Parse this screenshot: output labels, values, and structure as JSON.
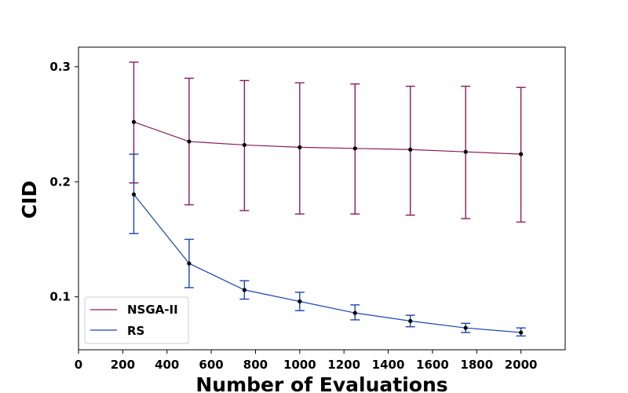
{
  "chart_data": {
    "type": "line",
    "title": "",
    "xlabel": "Number of Evaluations",
    "ylabel": "CID",
    "xlim": [
      0,
      2200
    ],
    "ylim": [
      0.054,
      0.317
    ],
    "xticks": [
      0,
      200,
      400,
      600,
      800,
      1000,
      1200,
      1400,
      1600,
      1800,
      2000
    ],
    "yticks": [
      0.1,
      0.2,
      0.3
    ],
    "ytick_labels": [
      "0.1",
      "0.2",
      "0.3"
    ],
    "grid": false,
    "legend_position": "bottom-left",
    "series": [
      {
        "name": "NSGA-II",
        "color": "#8b1a5c",
        "x": [
          250,
          500,
          750,
          1000,
          1250,
          1500,
          1750,
          2000
        ],
        "y": [
          0.252,
          0.235,
          0.232,
          0.23,
          0.229,
          0.228,
          0.226,
          0.224
        ],
        "yerr_low": [
          0.199,
          0.18,
          0.175,
          0.172,
          0.172,
          0.171,
          0.168,
          0.165
        ],
        "yerr_high": [
          0.304,
          0.29,
          0.288,
          0.286,
          0.285,
          0.283,
          0.283,
          0.282
        ]
      },
      {
        "name": "RS",
        "color": "#1a44b0",
        "x": [
          250,
          500,
          750,
          1000,
          1250,
          1500,
          1750,
          2000
        ],
        "y": [
          0.189,
          0.129,
          0.106,
          0.096,
          0.086,
          0.079,
          0.073,
          0.069
        ],
        "yerr_low": [
          0.155,
          0.108,
          0.098,
          0.088,
          0.08,
          0.074,
          0.069,
          0.066
        ],
        "yerr_high": [
          0.224,
          0.15,
          0.114,
          0.104,
          0.093,
          0.084,
          0.077,
          0.073
        ]
      }
    ]
  }
}
